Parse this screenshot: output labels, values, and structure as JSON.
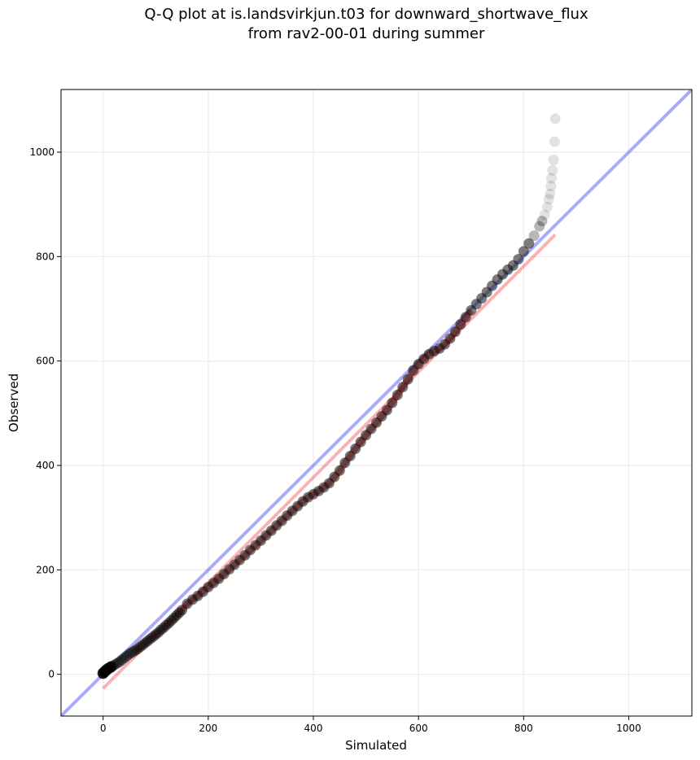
{
  "chart_data": {
    "type": "scatter",
    "title_lines": [
      "Q-Q plot at is.landsvirkjun.t03 for downward_shortwave_flux",
      "from rav2-00-01 during summer"
    ],
    "xlabel": "Simulated",
    "ylabel": "Observed",
    "xlim": [
      -80,
      1120
    ],
    "ylim": [
      -80,
      1120
    ],
    "xticks": [
      0,
      200,
      400,
      600,
      800,
      1000
    ],
    "yticks": [
      0,
      200,
      400,
      600,
      800,
      1000
    ],
    "grid": true,
    "legend": "none",
    "reference_lines": [
      {
        "kind": "1:1 line",
        "color": "#0000ee",
        "opacity": 0.33,
        "from": [
          -80,
          -80
        ],
        "to": [
          1120,
          1120
        ]
      },
      {
        "kind": "fit line",
        "color": "#ee0000",
        "opacity": 0.3,
        "from": [
          0,
          -27
        ],
        "to": [
          860,
          842
        ]
      }
    ],
    "quantiles": [
      [
        0,
        2
      ],
      [
        3,
        5
      ],
      [
        6,
        8
      ],
      [
        10,
        11
      ],
      [
        15,
        14
      ],
      [
        20,
        17
      ],
      [
        25,
        20
      ],
      [
        30,
        23
      ],
      [
        35,
        27
      ],
      [
        40,
        31
      ],
      [
        45,
        35
      ],
      [
        50,
        39
      ],
      [
        55,
        42
      ],
      [
        60,
        45
      ],
      [
        65,
        48
      ],
      [
        70,
        52
      ],
      [
        75,
        56
      ],
      [
        80,
        60
      ],
      [
        85,
        64
      ],
      [
        90,
        68
      ],
      [
        95,
        72
      ],
      [
        100,
        76
      ],
      [
        105,
        80
      ],
      [
        110,
        85
      ],
      [
        115,
        89
      ],
      [
        120,
        94
      ],
      [
        125,
        98
      ],
      [
        130,
        103
      ],
      [
        135,
        108
      ],
      [
        140,
        113
      ],
      [
        145,
        118
      ],
      [
        150,
        123
      ],
      [
        160,
        135
      ],
      [
        170,
        143
      ],
      [
        180,
        150
      ],
      [
        190,
        158
      ],
      [
        200,
        167
      ],
      [
        210,
        175
      ],
      [
        220,
        183
      ],
      [
        230,
        192
      ],
      [
        240,
        201
      ],
      [
        250,
        210
      ],
      [
        260,
        219
      ],
      [
        270,
        228
      ],
      [
        280,
        238
      ],
      [
        290,
        247
      ],
      [
        300,
        256
      ],
      [
        310,
        266
      ],
      [
        320,
        275
      ],
      [
        330,
        285
      ],
      [
        340,
        294
      ],
      [
        350,
        304
      ],
      [
        360,
        313
      ],
      [
        370,
        322
      ],
      [
        380,
        331
      ],
      [
        390,
        339
      ],
      [
        400,
        345
      ],
      [
        410,
        351
      ],
      [
        420,
        358
      ],
      [
        430,
        366
      ],
      [
        440,
        378
      ],
      [
        450,
        390
      ],
      [
        460,
        405
      ],
      [
        470,
        418
      ],
      [
        480,
        432
      ],
      [
        490,
        445
      ],
      [
        500,
        458
      ],
      [
        510,
        470
      ],
      [
        520,
        482
      ],
      [
        530,
        494
      ],
      [
        540,
        506
      ],
      [
        550,
        520
      ],
      [
        560,
        535
      ],
      [
        570,
        550
      ],
      [
        580,
        565
      ],
      [
        590,
        582
      ],
      [
        600,
        594
      ],
      [
        610,
        604
      ],
      [
        620,
        613
      ],
      [
        630,
        619
      ],
      [
        640,
        624
      ],
      [
        650,
        632
      ],
      [
        660,
        643
      ],
      [
        670,
        656
      ],
      [
        680,
        670
      ],
      [
        690,
        684
      ],
      [
        700,
        697
      ],
      [
        710,
        709
      ],
      [
        720,
        720
      ],
      [
        730,
        732
      ],
      [
        740,
        744
      ],
      [
        750,
        756
      ],
      [
        760,
        766
      ],
      [
        770,
        775
      ],
      [
        780,
        783
      ],
      [
        790,
        795
      ],
      [
        800,
        810
      ],
      [
        810,
        825
      ],
      [
        820,
        840
      ],
      [
        830,
        858
      ],
      [
        835,
        868
      ],
      [
        840,
        880
      ],
      [
        845,
        895
      ],
      [
        848,
        910
      ],
      [
        850,
        920
      ],
      [
        852,
        935
      ],
      [
        853,
        950
      ],
      [
        855,
        965
      ],
      [
        857,
        985
      ],
      [
        859,
        1020
      ],
      [
        860,
        1064
      ]
    ]
  }
}
